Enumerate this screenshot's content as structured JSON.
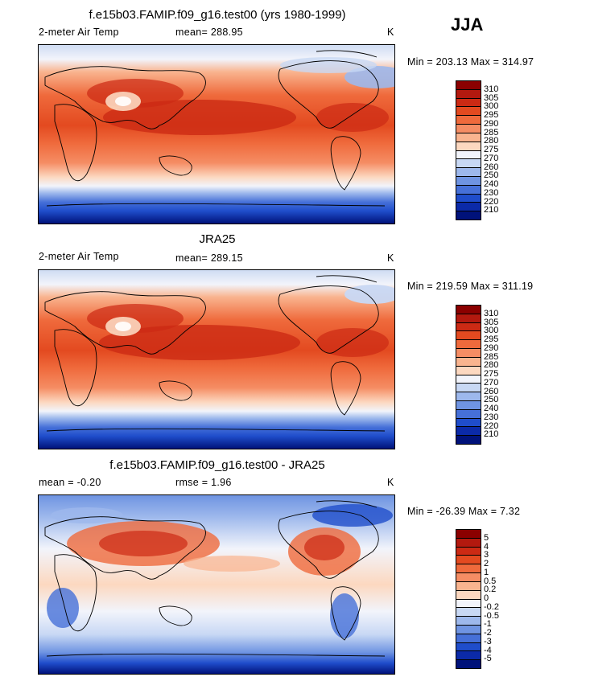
{
  "season": "JJA",
  "panels": [
    {
      "id": "model",
      "title": "f.e15b03.FAMIP.f09_g16.test00 (yrs 1980-1999)",
      "left_label": "2-meter Air Temp",
      "stat_label": "mean=  288.95",
      "stat2_label": "",
      "units": "K",
      "minmax": "Min = 203.13 Max = 314.97",
      "levels": [
        "310",
        "305",
        "300",
        "295",
        "290",
        "285",
        "280",
        "275",
        "270",
        "260",
        "250",
        "240",
        "230",
        "220",
        "210"
      ]
    },
    {
      "id": "obs",
      "title": "JRA25",
      "left_label": "2-meter Air Temp",
      "stat_label": "mean=  289.15",
      "stat2_label": "",
      "units": "K",
      "minmax": "Min = 219.59 Max = 311.19",
      "levels": [
        "310",
        "305",
        "300",
        "295",
        "290",
        "285",
        "280",
        "275",
        "270",
        "260",
        "250",
        "240",
        "230",
        "220",
        "210"
      ]
    },
    {
      "id": "diff",
      "title": "f.e15b03.FAMIP.f09_g16.test00 - JRA25",
      "left_label": "mean =   -0.20",
      "stat_label": "rmse =    1.96",
      "stat2_label": "",
      "units": "K",
      "minmax": "Min = -26.39 Max =    7.32",
      "levels": [
        "5",
        "4",
        "3",
        "2",
        "1",
        "0.5",
        "0.2",
        "0",
        "-0.2",
        "-0.5",
        "-1",
        "-2",
        "-3",
        "-4",
        "-5"
      ]
    }
  ],
  "colors": {
    "abs_scale": [
      "#8b0000",
      "#b3190f",
      "#cc2a14",
      "#e34a20",
      "#ef6a3c",
      "#f58d64",
      "#f9b48f",
      "#fcd8c0",
      "#f2f4fb",
      "#c8d8f4",
      "#9db8ec",
      "#6f94e2",
      "#4670d8",
      "#1f4dcb",
      "#0b2aa8",
      "#00127a"
    ],
    "diff_scale": [
      "#8b0000",
      "#b3190f",
      "#cc2a14",
      "#e34a20",
      "#ef6a3c",
      "#f58d64",
      "#f9b48f",
      "#fcd8c0",
      "#f2f4fb",
      "#c8d8f4",
      "#9db8ec",
      "#6f94e2",
      "#4670d8",
      "#1f4dcb",
      "#0b2aa8",
      "#00127a"
    ]
  }
}
